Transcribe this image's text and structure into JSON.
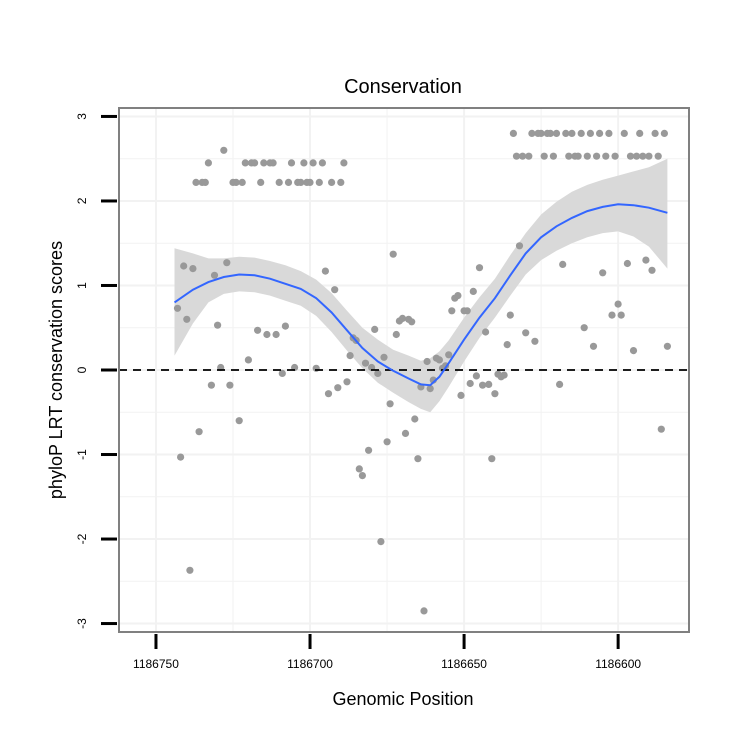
{
  "chart_data": {
    "type": "scatter",
    "title": "Conservation",
    "xlabel": "Genomic Position",
    "ylabel": "phyloP LRT conservation scores",
    "xlim": [
      1186762,
      1186577
    ],
    "ylim": [
      -3.1,
      3.1
    ],
    "x_reversed": true,
    "x_ticks": [
      1186750,
      1186700,
      1186650,
      1186600
    ],
    "x_tick_labels": [
      "1186750",
      "1186700",
      "1186650",
      "1186600"
    ],
    "y_ticks": [
      -3,
      -2,
      -1,
      0,
      1,
      2,
      3
    ],
    "y_tick_labels": [
      "-3",
      "-2",
      "-1",
      "0",
      "1",
      "2",
      "3"
    ],
    "grid": true,
    "reference_line": {
      "y": 0,
      "style": "dashed"
    },
    "colors": {
      "points": "#999999",
      "smooth_line": "#3366ff",
      "confidence_band": "#d9d9d9",
      "panel_border": "#808080",
      "grid": "#f2f2f2"
    },
    "points": [
      {
        "x": 1186743,
        "y": 0.73
      },
      {
        "x": 1186742,
        "y": -1.03
      },
      {
        "x": 1186741,
        "y": 1.23
      },
      {
        "x": 1186740,
        "y": 0.6
      },
      {
        "x": 1186739,
        "y": -2.37
      },
      {
        "x": 1186738,
        "y": 1.2
      },
      {
        "x": 1186737,
        "y": 2.22
      },
      {
        "x": 1186736,
        "y": -0.73
      },
      {
        "x": 1186735,
        "y": 2.22
      },
      {
        "x": 1186734,
        "y": 2.22
      },
      {
        "x": 1186733,
        "y": 2.45
      },
      {
        "x": 1186732,
        "y": -0.18
      },
      {
        "x": 1186731,
        "y": 1.12
      },
      {
        "x": 1186730,
        "y": 0.53
      },
      {
        "x": 1186729,
        "y": 0.03
      },
      {
        "x": 1186728,
        "y": 2.6
      },
      {
        "x": 1186727,
        "y": 1.27
      },
      {
        "x": 1186726,
        "y": -0.18
      },
      {
        "x": 1186725,
        "y": 2.22
      },
      {
        "x": 1186724,
        "y": 2.22
      },
      {
        "x": 1186723,
        "y": -0.6
      },
      {
        "x": 1186722,
        "y": 2.22
      },
      {
        "x": 1186721,
        "y": 2.45
      },
      {
        "x": 1186720,
        "y": 0.12
      },
      {
        "x": 1186719,
        "y": 2.45
      },
      {
        "x": 1186718,
        "y": 2.45
      },
      {
        "x": 1186717,
        "y": 0.47
      },
      {
        "x": 1186716,
        "y": 2.22
      },
      {
        "x": 1186715,
        "y": 2.45
      },
      {
        "x": 1186714,
        "y": 0.42
      },
      {
        "x": 1186713,
        "y": 2.45
      },
      {
        "x": 1186712,
        "y": 2.45
      },
      {
        "x": 1186711,
        "y": 0.42
      },
      {
        "x": 1186710,
        "y": 2.22
      },
      {
        "x": 1186709,
        "y": -0.04
      },
      {
        "x": 1186708,
        "y": 0.52
      },
      {
        "x": 1186707,
        "y": 2.22
      },
      {
        "x": 1186706,
        "y": 2.45
      },
      {
        "x": 1186705,
        "y": 0.03
      },
      {
        "x": 1186704,
        "y": 2.22
      },
      {
        "x": 1186703,
        "y": 2.22
      },
      {
        "x": 1186702,
        "y": 2.45
      },
      {
        "x": 1186701,
        "y": 2.22
      },
      {
        "x": 1186700,
        "y": 2.22
      },
      {
        "x": 1186699,
        "y": 2.45
      },
      {
        "x": 1186698,
        "y": 0.02
      },
      {
        "x": 1186697,
        "y": 2.22
      },
      {
        "x": 1186696,
        "y": 2.45
      },
      {
        "x": 1186695,
        "y": 1.17
      },
      {
        "x": 1186694,
        "y": -0.28
      },
      {
        "x": 1186693,
        "y": 2.22
      },
      {
        "x": 1186692,
        "y": 0.95
      },
      {
        "x": 1186691,
        "y": -0.21
      },
      {
        "x": 1186690,
        "y": 2.22
      },
      {
        "x": 1186689,
        "y": 2.45
      },
      {
        "x": 1186688,
        "y": -0.14
      },
      {
        "x": 1186687,
        "y": 0.17
      },
      {
        "x": 1186686,
        "y": 0.38
      },
      {
        "x": 1186685,
        "y": 0.35
      },
      {
        "x": 1186684,
        "y": -1.17
      },
      {
        "x": 1186683,
        "y": -1.25
      },
      {
        "x": 1186682,
        "y": 0.08
      },
      {
        "x": 1186681,
        "y": -0.95
      },
      {
        "x": 1186680,
        "y": 0.03
      },
      {
        "x": 1186679,
        "y": 0.48
      },
      {
        "x": 1186678,
        "y": -0.04
      },
      {
        "x": 1186677,
        "y": -2.03
      },
      {
        "x": 1186676,
        "y": 0.15
      },
      {
        "x": 1186675,
        "y": -0.85
      },
      {
        "x": 1186674,
        "y": -0.4
      },
      {
        "x": 1186673,
        "y": 1.37
      },
      {
        "x": 1186672,
        "y": 0.42
      },
      {
        "x": 1186671,
        "y": 0.58
      },
      {
        "x": 1186670,
        "y": 0.61
      },
      {
        "x": 1186669,
        "y": -0.75
      },
      {
        "x": 1186668,
        "y": 0.6
      },
      {
        "x": 1186667,
        "y": 0.57
      },
      {
        "x": 1186666,
        "y": -0.58
      },
      {
        "x": 1186665,
        "y": -1.05
      },
      {
        "x": 1186664,
        "y": -0.2
      },
      {
        "x": 1186663,
        "y": -2.85
      },
      {
        "x": 1186662,
        "y": 0.1
      },
      {
        "x": 1186661,
        "y": -0.22
      },
      {
        "x": 1186660,
        "y": -0.12
      },
      {
        "x": 1186659,
        "y": 0.14
      },
      {
        "x": 1186658,
        "y": 0.12
      },
      {
        "x": 1186657,
        "y": 0.02
      },
      {
        "x": 1186656,
        "y": 0.05
      },
      {
        "x": 1186655,
        "y": 0.18
      },
      {
        "x": 1186654,
        "y": 0.7
      },
      {
        "x": 1186653,
        "y": 0.85
      },
      {
        "x": 1186652,
        "y": 0.88
      },
      {
        "x": 1186651,
        "y": -0.3
      },
      {
        "x": 1186650,
        "y": 0.7
      },
      {
        "x": 1186649,
        "y": 0.7
      },
      {
        "x": 1186648,
        "y": -0.16
      },
      {
        "x": 1186647,
        "y": 0.93
      },
      {
        "x": 1186646,
        "y": -0.07
      },
      {
        "x": 1186645,
        "y": 1.21
      },
      {
        "x": 1186644,
        "y": -0.18
      },
      {
        "x": 1186643,
        "y": 0.45
      },
      {
        "x": 1186642,
        "y": -0.17
      },
      {
        "x": 1186641,
        "y": -1.05
      },
      {
        "x": 1186640,
        "y": -0.28
      },
      {
        "x": 1186639,
        "y": -0.05
      },
      {
        "x": 1186638,
        "y": -0.08
      },
      {
        "x": 1186637,
        "y": -0.06
      },
      {
        "x": 1186636,
        "y": 0.3
      },
      {
        "x": 1186635,
        "y": 0.65
      },
      {
        "x": 1186634,
        "y": 2.8
      },
      {
        "x": 1186633,
        "y": 2.53
      },
      {
        "x": 1186632,
        "y": 1.47
      },
      {
        "x": 1186631,
        "y": 2.53
      },
      {
        "x": 1186630,
        "y": 0.44
      },
      {
        "x": 1186629,
        "y": 2.53
      },
      {
        "x": 1186628,
        "y": 2.8
      },
      {
        "x": 1186627,
        "y": 0.34
      },
      {
        "x": 1186626,
        "y": 2.8
      },
      {
        "x": 1186625,
        "y": 2.8
      },
      {
        "x": 1186624,
        "y": 2.53
      },
      {
        "x": 1186623,
        "y": 2.8
      },
      {
        "x": 1186622,
        "y": 2.8
      },
      {
        "x": 1186621,
        "y": 2.53
      },
      {
        "x": 1186620,
        "y": 2.8
      },
      {
        "x": 1186619,
        "y": -0.17
      },
      {
        "x": 1186618,
        "y": 1.25
      },
      {
        "x": 1186617,
        "y": 2.8
      },
      {
        "x": 1186616,
        "y": 2.53
      },
      {
        "x": 1186615,
        "y": 2.8
      },
      {
        "x": 1186614,
        "y": 2.53
      },
      {
        "x": 1186613,
        "y": 2.53
      },
      {
        "x": 1186612,
        "y": 2.8
      },
      {
        "x": 1186611,
        "y": 0.5
      },
      {
        "x": 1186610,
        "y": 2.53
      },
      {
        "x": 1186609,
        "y": 2.8
      },
      {
        "x": 1186608,
        "y": 0.28
      },
      {
        "x": 1186607,
        "y": 2.53
      },
      {
        "x": 1186606,
        "y": 2.8
      },
      {
        "x": 1186605,
        "y": 1.15
      },
      {
        "x": 1186604,
        "y": 2.53
      },
      {
        "x": 1186603,
        "y": 2.8
      },
      {
        "x": 1186602,
        "y": 0.65
      },
      {
        "x": 1186601,
        "y": 2.53
      },
      {
        "x": 1186600,
        "y": 0.78
      },
      {
        "x": 1186599,
        "y": 0.65
      },
      {
        "x": 1186598,
        "y": 2.8
      },
      {
        "x": 1186597,
        "y": 1.26
      },
      {
        "x": 1186596,
        "y": 2.53
      },
      {
        "x": 1186595,
        "y": 0.23
      },
      {
        "x": 1186594,
        "y": 2.53
      },
      {
        "x": 1186593,
        "y": 2.8
      },
      {
        "x": 1186592,
        "y": 2.53
      },
      {
        "x": 1186591,
        "y": 1.3
      },
      {
        "x": 1186590,
        "y": 2.53
      },
      {
        "x": 1186589,
        "y": 1.18
      },
      {
        "x": 1186588,
        "y": 2.8
      },
      {
        "x": 1186587,
        "y": 2.53
      },
      {
        "x": 1186586,
        "y": -0.7
      },
      {
        "x": 1186585,
        "y": 2.8
      },
      {
        "x": 1186584,
        "y": 0.28
      }
    ],
    "smooth": {
      "x": [
        1186744,
        1186738,
        1186733,
        1186728,
        1186723,
        1186718,
        1186713,
        1186708,
        1186703,
        1186698,
        1186693,
        1186688,
        1186683,
        1186678,
        1186673,
        1186668,
        1186664,
        1186661,
        1186658,
        1186655,
        1186650,
        1186645,
        1186640,
        1186635,
        1186630,
        1186625,
        1186620,
        1186615,
        1186610,
        1186605,
        1186600,
        1186595,
        1186590,
        1186584
      ],
      "y": [
        0.8,
        0.95,
        1.04,
        1.1,
        1.13,
        1.12,
        1.08,
        1.02,
        0.96,
        0.85,
        0.68,
        0.47,
        0.26,
        0.1,
        -0.01,
        -0.1,
        -0.17,
        -0.18,
        -0.08,
        0.08,
        0.36,
        0.62,
        0.85,
        1.12,
        1.38,
        1.57,
        1.7,
        1.8,
        1.88,
        1.93,
        1.96,
        1.95,
        1.92,
        1.86
      ],
      "lower": [
        0.17,
        0.55,
        0.8,
        0.9,
        0.93,
        0.92,
        0.88,
        0.82,
        0.76,
        0.64,
        0.45,
        0.23,
        0.02,
        -0.15,
        -0.27,
        -0.38,
        -0.46,
        -0.5,
        -0.37,
        -0.2,
        0.1,
        0.38,
        0.62,
        0.88,
        1.13,
        1.3,
        1.41,
        1.5,
        1.57,
        1.62,
        1.64,
        1.58,
        1.46,
        1.2
      ],
      "upper": [
        1.44,
        1.38,
        1.32,
        1.32,
        1.34,
        1.33,
        1.29,
        1.24,
        1.17,
        1.07,
        0.91,
        0.7,
        0.5,
        0.36,
        0.24,
        0.17,
        0.11,
        0.14,
        0.22,
        0.35,
        0.62,
        0.86,
        1.08,
        1.36,
        1.62,
        1.84,
        1.99,
        2.11,
        2.19,
        2.25,
        2.3,
        2.35,
        2.4,
        2.5
      ]
    }
  }
}
